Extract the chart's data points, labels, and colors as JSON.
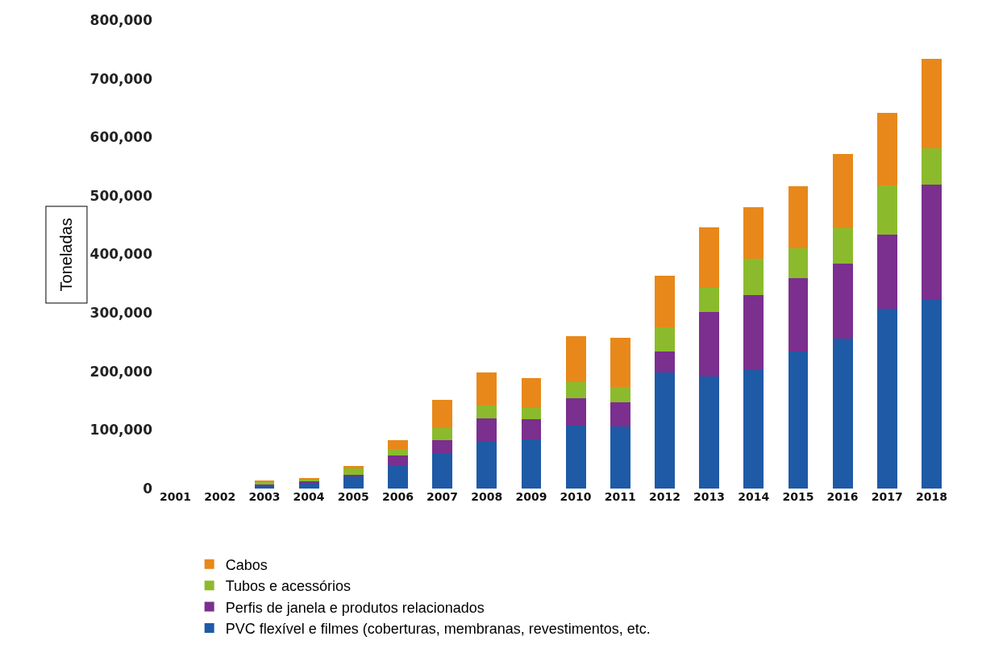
{
  "chart_data": {
    "type": "bar",
    "stacked": true,
    "ylabel": "Toneladas",
    "categories": [
      "2001",
      "2002",
      "2003",
      "2004",
      "2005",
      "2006",
      "2007",
      "2008",
      "2009",
      "2010",
      "2011",
      "2012",
      "2013",
      "2014",
      "2015",
      "2016",
      "2017",
      "2018"
    ],
    "series": [
      {
        "name": "PVC flexível e filmes (coberturas, membranas, revestimentos, etc.",
        "color": "#1f5aa6",
        "values": [
          null,
          null,
          5000,
          9000,
          21000,
          38000,
          60000,
          80000,
          84000,
          107000,
          106000,
          198000,
          192000,
          203000,
          234000,
          256000,
          307000,
          322000
        ]
      },
      {
        "name": "Perfis de janela e produtos relacionados",
        "color": "#7b2f8e",
        "values": [
          null,
          null,
          2000,
          3000,
          3000,
          19000,
          22000,
          40000,
          34000,
          47000,
          42000,
          36000,
          110000,
          128000,
          126000,
          128000,
          127000,
          197000
        ]
      },
      {
        "name": "Tubos e acessórios",
        "color": "#8bbb2c",
        "values": [
          null,
          null,
          5000,
          3000,
          10000,
          10000,
          21000,
          22000,
          20000,
          28000,
          26000,
          42000,
          41000,
          62000,
          51000,
          61000,
          84000,
          62000
        ]
      },
      {
        "name": "Cabos",
        "color": "#e8881a",
        "values": [
          null,
          null,
          2000,
          3000,
          5000,
          16000,
          48000,
          56000,
          50000,
          78000,
          84000,
          87000,
          103000,
          88000,
          106000,
          127000,
          124000,
          153000
        ]
      }
    ],
    "ylim": [
      0,
      800000
    ],
    "yticks": [
      {
        "value": 0,
        "label": "0"
      },
      {
        "value": 100000,
        "label": "100,000"
      },
      {
        "value": 200000,
        "label": "200,000"
      },
      {
        "value": 300000,
        "label": "300,000"
      },
      {
        "value": 400000,
        "label": "400,000"
      },
      {
        "value": 500000,
        "label": "500,000"
      },
      {
        "value": 600000,
        "label": "600,000"
      },
      {
        "value": 700000,
        "label": "700,000"
      },
      {
        "value": 800000,
        "label": "800,000"
      }
    ],
    "legend": "bottom"
  }
}
